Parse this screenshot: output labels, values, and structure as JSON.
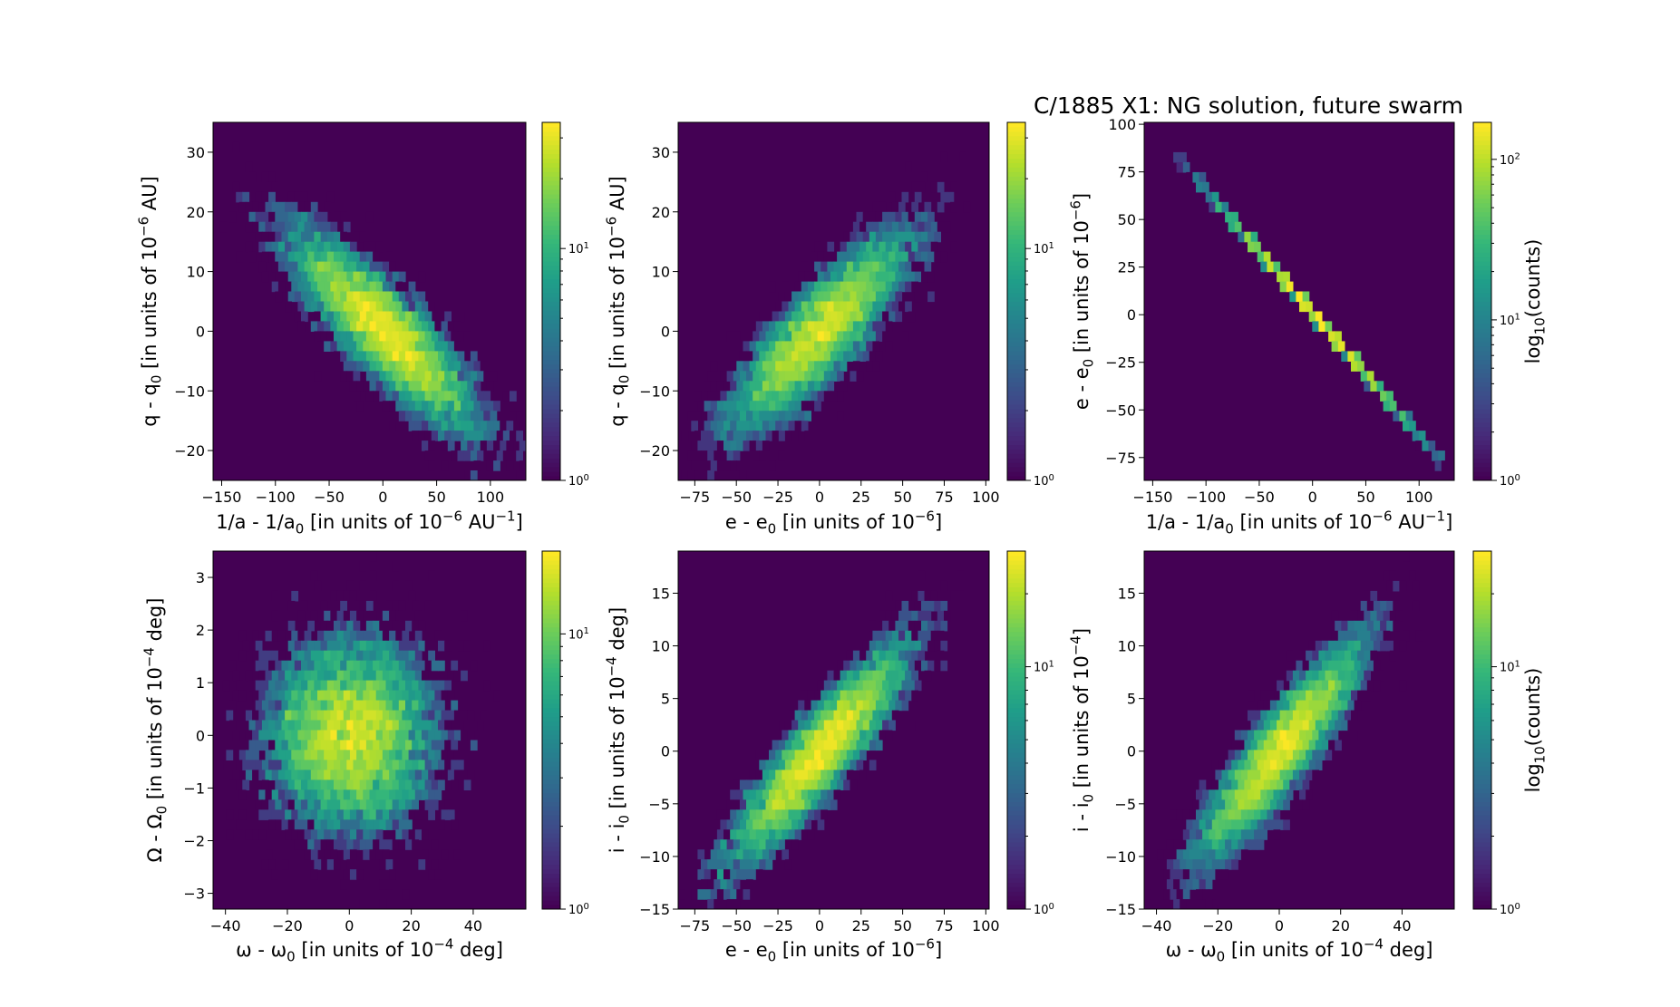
{
  "figure_title": "C/1885 X1:  NG solution, future swarm",
  "colormap": "viridis",
  "colors": {
    "background": "#440154",
    "low": "#46327e",
    "mid": "#21918c",
    "high": "#fde725"
  },
  "chart_data": [
    {
      "type": "heatmap",
      "title": "",
      "xlabel": "1/a - 1/a_0 [in units of 10^-6 AU^-1]",
      "ylabel": "q - q_0 [in units of 10^-6 AU]",
      "xlim": [
        -158,
        133
      ],
      "ylim": [
        -25,
        35
      ],
      "xticks": [
        -150,
        -100,
        -50,
        0,
        50,
        100
      ],
      "yticks": [
        -20,
        -10,
        0,
        10,
        20,
        30
      ],
      "xtick_labels": [
        "−150",
        "−100",
        "−50",
        "0",
        "50",
        "100"
      ],
      "ytick_labels": [
        "−20",
        "−10",
        "0",
        "10",
        "20",
        "30"
      ],
      "distribution": {
        "mean": [
          0,
          0
        ],
        "sd": [
          42,
          8
        ],
        "correlation": -0.85
      },
      "colorbar": {
        "scale": "log",
        "min": 1,
        "max": 35,
        "ticks": [
          1,
          10
        ],
        "tick_labels": [
          "10^0",
          "10^1"
        ],
        "label": ""
      }
    },
    {
      "type": "heatmap",
      "title": "",
      "xlabel": "e - e_0 [in units of 10^-6]",
      "ylabel": "q - q_0 [in units of 10^-6 AU]",
      "xlim": [
        -85,
        102
      ],
      "ylim": [
        -25,
        35
      ],
      "xticks": [
        -75,
        -50,
        -25,
        0,
        25,
        50,
        75,
        100
      ],
      "yticks": [
        -20,
        -10,
        0,
        10,
        20,
        30
      ],
      "xtick_labels": [
        "−75",
        "−50",
        "−25",
        "0",
        "25",
        "50",
        "75",
        "100"
      ],
      "ytick_labels": [
        "−20",
        "−10",
        "0",
        "10",
        "20",
        "30"
      ],
      "distribution": {
        "mean": [
          0,
          0
        ],
        "sd": [
          26,
          8
        ],
        "correlation": 0.85
      },
      "colorbar": {
        "scale": "log",
        "min": 1,
        "max": 35,
        "ticks": [
          1,
          10
        ],
        "tick_labels": [
          "10^0",
          "10^1"
        ],
        "label": ""
      }
    },
    {
      "type": "heatmap",
      "title": "C/1885 X1:  NG solution, future swarm",
      "xlabel": "1/a - 1/a_0 [in units of 10^-6 AU^-1]",
      "ylabel": "e - e_0 [in units of 10^-6]",
      "xlim": [
        -158,
        133
      ],
      "ylim": [
        -87,
        101
      ],
      "xticks": [
        -150,
        -100,
        -50,
        0,
        50,
        100
      ],
      "yticks": [
        -75,
        -50,
        -25,
        0,
        25,
        50,
        75,
        100
      ],
      "xtick_labels": [
        "−150",
        "−100",
        "−50",
        "0",
        "50",
        "100"
      ],
      "ytick_labels": [
        "−75",
        "−50",
        "−25",
        "0",
        "25",
        "50",
        "75",
        "100"
      ],
      "line": {
        "slope": -0.645,
        "x_range": [
          -145,
          125
        ],
        "sd_x": 42
      },
      "colorbar": {
        "scale": "log",
        "min": 1,
        "max": 170,
        "ticks": [
          1,
          10,
          100
        ],
        "tick_labels": [
          "10^0",
          "10^1",
          "10^2"
        ],
        "label": "log_10(counts)"
      }
    },
    {
      "type": "heatmap",
      "title": "",
      "xlabel": "ω - ω_0 [in units of 10^-4 deg]",
      "ylabel": "Ω - Ω_0 [in units of 10^-4 deg]",
      "xlim": [
        -44,
        57
      ],
      "ylim": [
        -3.3,
        3.5
      ],
      "xticks": [
        -40,
        -20,
        0,
        20,
        40
      ],
      "yticks": [
        -3,
        -2,
        -1,
        0,
        1,
        2,
        3
      ],
      "xtick_labels": [
        "−40",
        "−20",
        "0",
        "20",
        "40"
      ],
      "ytick_labels": [
        "−3",
        "−2",
        "−1",
        "0",
        "1",
        "2",
        "3"
      ],
      "distribution": {
        "mean": [
          0,
          0
        ],
        "sd": [
          13,
          0.9
        ],
        "correlation": 0.0
      },
      "colorbar": {
        "scale": "log",
        "min": 1,
        "max": 20,
        "ticks": [
          1,
          10
        ],
        "tick_labels": [
          "10^0",
          "10^1"
        ],
        "label": ""
      }
    },
    {
      "type": "heatmap",
      "title": "",
      "xlabel": "e - e_0 [in units of 10^-6]",
      "ylabel": "i - i_0 [in units of 10^-4 deg]",
      "xlim": [
        -85,
        102
      ],
      "ylim": [
        -15,
        19
      ],
      "xticks": [
        -75,
        -50,
        -25,
        0,
        25,
        50,
        75,
        100
      ],
      "yticks": [
        -15,
        -10,
        -5,
        0,
        5,
        10,
        15
      ],
      "xtick_labels": [
        "−75",
        "−50",
        "−25",
        "0",
        "25",
        "50",
        "75",
        "100"
      ],
      "ytick_labels": [
        "−15",
        "−10",
        "−5",
        "0",
        "5",
        "10",
        "15"
      ],
      "distribution": {
        "mean": [
          0,
          0
        ],
        "sd": [
          26,
          5
        ],
        "correlation": 0.9
      },
      "colorbar": {
        "scale": "log",
        "min": 1,
        "max": 30,
        "ticks": [
          1,
          10
        ],
        "tick_labels": [
          "10^0",
          "10^1"
        ],
        "label": ""
      }
    },
    {
      "type": "heatmap",
      "title": "",
      "xlabel": "ω - ω_0 [in units of 10^-4 deg]",
      "ylabel": "i - i_0 [in units of 10^-4]",
      "xlim": [
        -44,
        57
      ],
      "ylim": [
        -15,
        19
      ],
      "xticks": [
        -40,
        -20,
        0,
        20,
        40
      ],
      "yticks": [
        -15,
        -10,
        -5,
        0,
        5,
        10,
        15
      ],
      "xtick_labels": [
        "−40",
        "−20",
        "0",
        "20",
        "40"
      ],
      "ytick_labels": [
        "−15",
        "−10",
        "−5",
        "0",
        "5",
        "10",
        "15"
      ],
      "distribution": {
        "mean": [
          0,
          0
        ],
        "sd": [
          13,
          5
        ],
        "correlation": 0.9
      },
      "colorbar": {
        "scale": "log",
        "min": 1,
        "max": 30,
        "ticks": [
          1,
          10
        ],
        "tick_labels": [
          "10^0",
          "10^1"
        ],
        "label": "log_10(counts)"
      }
    }
  ]
}
